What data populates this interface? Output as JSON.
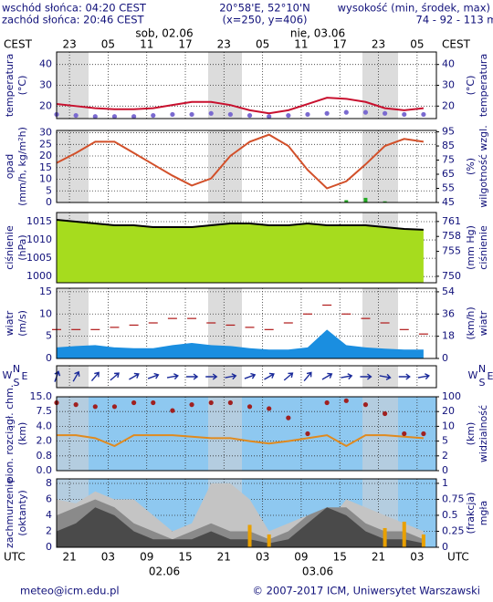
{
  "header": {
    "sunrise": "wschód słońca: 04:20 CEST",
    "sunset": "zachód słońca: 20:46 CEST",
    "coords": "20°58'E, 52°10'N",
    "grid": "(x=250,  y=406)",
    "height_title": "wysokość (min, środek, max)",
    "height_values": "74 - 92 - 113 m"
  },
  "time_axis": {
    "xlim": [
      0,
      59
    ],
    "top_label": "CEST",
    "bottom_label": "UTC",
    "top_days": [
      "sob, 02.06",
      "nie, 03.06"
    ],
    "bottom_days": [
      "02.06",
      "03.06"
    ],
    "cest_ticks": [
      {
        "value": 2,
        "label": "23"
      },
      {
        "value": 8,
        "label": "05"
      },
      {
        "value": 14,
        "label": "11"
      },
      {
        "value": 20,
        "label": "17"
      },
      {
        "value": 26,
        "label": "23"
      },
      {
        "value": 32,
        "label": "05"
      },
      {
        "value": 38,
        "label": "11"
      },
      {
        "value": 44,
        "label": "17"
      },
      {
        "value": 50,
        "label": "23"
      },
      {
        "value": 56,
        "label": "05"
      }
    ],
    "utc_ticks": [
      {
        "value": 2,
        "label": "21"
      },
      {
        "value": 8,
        "label": "03"
      },
      {
        "value": 14,
        "label": "09"
      },
      {
        "value": 20,
        "label": "15"
      },
      {
        "value": 26,
        "label": "21"
      },
      {
        "value": 32,
        "label": "03"
      },
      {
        "value": 38,
        "label": "09"
      },
      {
        "value": 44,
        "label": "15"
      },
      {
        "value": 50,
        "label": "21"
      },
      {
        "value": 56,
        "label": "03"
      }
    ]
  },
  "chart_data": [
    {
      "type": "line",
      "ylabel": [
        "temperatura",
        "(°C)"
      ],
      "y2label": [
        "(°C)",
        "temperatura"
      ],
      "ylim": [
        14,
        46
      ],
      "yticks": [
        20,
        30,
        40
      ],
      "y2lim": [
        14,
        46
      ],
      "y2ticks": [
        20,
        30,
        40
      ],
      "background": "#ffffff",
      "x": [
        0,
        3,
        6,
        9,
        12,
        15,
        18,
        21,
        24,
        27,
        30,
        33,
        36,
        39,
        42,
        45,
        48,
        51,
        54,
        57
      ],
      "series": [
        {
          "kind": "dots",
          "color": "#7a6ad0",
          "values": [
            16,
            15.5,
            15,
            15,
            15,
            15.5,
            16,
            16,
            16.5,
            16,
            15.5,
            15,
            15.5,
            16,
            16.5,
            17,
            17,
            16.5,
            16,
            16
          ]
        },
        {
          "kind": "line",
          "color": "#c8102e",
          "values": [
            21,
            20,
            19,
            18.5,
            18.5,
            19,
            20.5,
            22,
            22,
            20.5,
            18,
            16.5,
            18,
            21,
            24,
            23.5,
            22,
            19,
            18,
            19
          ]
        }
      ]
    },
    {
      "type": "line",
      "ylabel": [
        "opad",
        "(mm/h, kg/m²h)"
      ],
      "y2label": [
        "(%)",
        "wilgotność wzgl."
      ],
      "ylim": [
        0,
        31
      ],
      "yticks": [
        0,
        5,
        10,
        15,
        20,
        25,
        30
      ],
      "y2lim": [
        45,
        96
      ],
      "y2ticks": [
        45,
        55,
        65,
        75,
        85,
        95
      ],
      "background": "#ffffff",
      "x": [
        0,
        3,
        6,
        9,
        12,
        15,
        18,
        21,
        24,
        27,
        30,
        33,
        36,
        39,
        42,
        45,
        48,
        51,
        54,
        57
      ],
      "series": [
        {
          "kind": "bars",
          "color": "#22aa22",
          "values": [
            0,
            0,
            0,
            0,
            0,
            0,
            0,
            0,
            0,
            0,
            0,
            0,
            0,
            0,
            0,
            1,
            2,
            0.5,
            0,
            0
          ]
        },
        {
          "kind": "line",
          "color": "#d2502a",
          "axis": "y2",
          "values": [
            73,
            80,
            88,
            88,
            80,
            72,
            64,
            57,
            62,
            78,
            88,
            93,
            85,
            68,
            55,
            60,
            72,
            85,
            90,
            88
          ]
        }
      ]
    },
    {
      "type": "line",
      "ylabel": [
        "ciśnienie",
        "(hPa)"
      ],
      "y2label": [
        "(mm Hg)",
        "ciśnienie"
      ],
      "ylim": [
        998.3,
        1017.5
      ],
      "yticks": [
        1000,
        1005,
        1010,
        1015
      ],
      "y2lim": [
        748.7,
        762.8
      ],
      "y2ticks": [
        750,
        755,
        758,
        761
      ],
      "background": "#ffffff",
      "x": [
        0,
        3,
        6,
        9,
        12,
        15,
        18,
        21,
        24,
        27,
        30,
        33,
        36,
        39,
        42,
        45,
        48,
        51,
        54,
        57
      ],
      "series": [
        {
          "kind": "area",
          "color": "#a6dc1e",
          "values": [
            1015.5,
            1015,
            1014.5,
            1014,
            1014,
            1013.5,
            1013.5,
            1013.5,
            1014,
            1014.5,
            1014.5,
            1014,
            1014,
            1014.5,
            1014,
            1014,
            1014,
            1013.5,
            1013,
            1012.8
          ]
        },
        {
          "kind": "line",
          "color": "#000000",
          "values": [
            1015.5,
            1015,
            1014.5,
            1014,
            1014,
            1013.5,
            1013.5,
            1013.5,
            1014,
            1014.5,
            1014.5,
            1014,
            1014,
            1014.5,
            1014,
            1014,
            1014,
            1013.5,
            1013,
            1012.8
          ]
        }
      ]
    },
    {
      "type": "line",
      "ylabel": [
        "wiatr",
        "(m/s)"
      ],
      "y2label": [
        "(km/h)",
        "wiatr"
      ],
      "ylim": [
        0,
        15.8
      ],
      "yticks": [
        0,
        5,
        10,
        15
      ],
      "y2lim": [
        0,
        56.9
      ],
      "y2ticks": [
        0,
        18,
        36,
        54
      ],
      "background": "#ffffff",
      "x": [
        0,
        3,
        6,
        9,
        12,
        15,
        18,
        21,
        24,
        27,
        30,
        33,
        36,
        39,
        42,
        45,
        48,
        51,
        54,
        57
      ],
      "series": [
        {
          "kind": "area",
          "color": "#1a8ee0",
          "values": [
            2.5,
            2.8,
            3,
            2.5,
            2.3,
            2.3,
            3,
            3.5,
            3,
            2.8,
            2.3,
            2,
            2,
            2.5,
            6.5,
            3,
            2.5,
            2.2,
            2,
            2
          ]
        },
        {
          "kind": "dashes",
          "color": "#b01818",
          "values": [
            6.5,
            6.5,
            6.5,
            7,
            7.5,
            8,
            9,
            9,
            8,
            7.5,
            7,
            6.5,
            8,
            10,
            12,
            10,
            9,
            8,
            6.5,
            5.5
          ]
        }
      ]
    },
    {
      "type": "arrows",
      "labels": [
        "W",
        "N",
        "S",
        "E"
      ],
      "background": "#ffffff",
      "color": "#1a2a9a",
      "x": [
        0,
        3,
        6,
        9,
        12,
        15,
        18,
        21,
        24,
        27,
        30,
        33,
        36,
        39,
        42,
        45,
        48,
        51,
        54,
        57
      ],
      "values": [
        200,
        210,
        220,
        230,
        240,
        250,
        260,
        270,
        270,
        260,
        250,
        240,
        230,
        220,
        240,
        260,
        270,
        280,
        270,
        260
      ]
    },
    {
      "type": "line",
      "yscale": "piecewise",
      "ylabel": [
        "pion. rozciągł. chm.",
        "(km)"
      ],
      "y2label": [
        "(km)",
        "widzialność"
      ],
      "ylim": [
        0,
        15
      ],
      "yticks": [
        {
          "value": 0,
          "label": "0.0"
        },
        0.8,
        {
          "value": 2,
          "label": "2.0"
        },
        {
          "value": 4,
          "label": "4.0"
        },
        7.5,
        {
          "value": 15,
          "label": "15.0"
        }
      ],
      "y2lim": [
        0,
        100
      ],
      "y2ticks": [
        0,
        2,
        5,
        10,
        20,
        100
      ],
      "background": "#8ec8f0",
      "x": [
        0,
        3,
        6,
        9,
        12,
        15,
        18,
        21,
        24,
        27,
        30,
        33,
        36,
        39,
        42,
        45,
        48,
        51,
        54,
        57
      ],
      "series": [
        {
          "kind": "line",
          "color": "#e08a1e",
          "axis": "y2",
          "values": [
            7,
            7,
            6,
            4,
            7,
            7,
            7,
            6.5,
            6,
            6,
            5,
            4.5,
            5,
            6,
            7,
            4,
            7,
            7,
            6.5,
            6
          ]
        },
        {
          "kind": "dots",
          "color": "#a02020",
          "values": [
            12,
            11,
            10,
            10,
            12,
            12,
            8,
            11,
            12,
            12,
            10,
            9,
            6,
            3,
            12,
            13,
            11,
            7,
            3,
            3
          ]
        }
      ]
    },
    {
      "type": "line",
      "ylabel": [
        "zachmurzenie",
        "(oktanty)"
      ],
      "y2label": [
        "(frakcja)",
        "mgła"
      ],
      "ylim": [
        0,
        8.57
      ],
      "yticks": [
        0,
        2,
        4,
        6,
        8
      ],
      "y2lim": [
        0,
        1.07
      ],
      "y2ticks": [
        0,
        0.25,
        0.5,
        0.75,
        1
      ],
      "background": "#8ec8f0",
      "x": [
        0,
        3,
        6,
        9,
        12,
        15,
        18,
        21,
        24,
        27,
        30,
        33,
        36,
        39,
        42,
        45,
        48,
        51,
        54,
        57
      ],
      "series": [
        {
          "kind": "area",
          "color": "#c4c4c4",
          "values": [
            6,
            5.5,
            7,
            6,
            6,
            4,
            2,
            3,
            8,
            8,
            6,
            2,
            3,
            4,
            3,
            6,
            5,
            4,
            3,
            2
          ]
        },
        {
          "kind": "area",
          "color": "#8a8a8a",
          "values": [
            4,
            5,
            6,
            5,
            3,
            2,
            1,
            2,
            3,
            2,
            2,
            1,
            2,
            4,
            5,
            5,
            3,
            2,
            2,
            1
          ]
        },
        {
          "kind": "area",
          "color": "#4a4a4a",
          "values": [
            2,
            3,
            5,
            4,
            2,
            1,
            1,
            1,
            2,
            1,
            1,
            0.5,
            1,
            3,
            5,
            4,
            2,
            1,
            1,
            0.5
          ]
        },
        {
          "kind": "bars",
          "color": "#e8a000",
          "axis": "y2",
          "values": [
            0,
            0,
            0,
            0,
            0,
            0,
            0,
            0,
            0,
            0,
            0.35,
            0.2,
            0,
            0,
            0,
            0,
            0,
            0.3,
            0.4,
            0.2
          ]
        }
      ]
    }
  ],
  "footer": {
    "email": "meteo@icm.edu.pl",
    "copyright": "© 2007-2017 ICM, Uniwersytet Warszawski"
  }
}
